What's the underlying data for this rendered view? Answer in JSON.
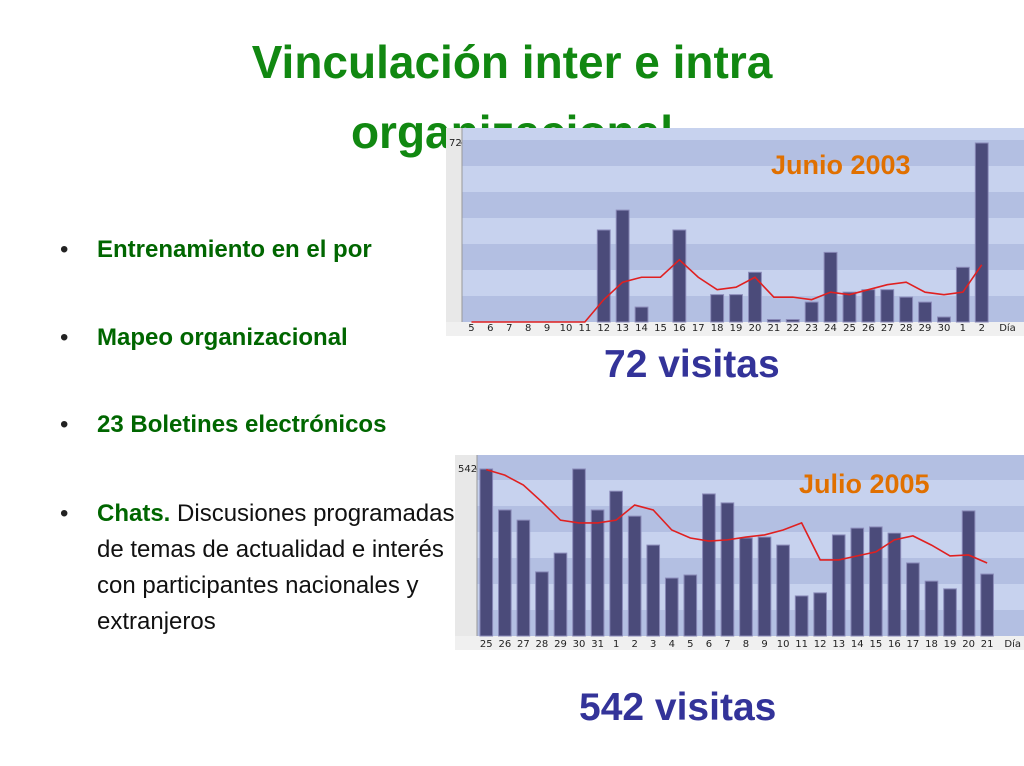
{
  "title_lines": [
    "Vinculación inter e intra",
    "organizacional"
  ],
  "bullets": [
    {
      "text": "Entrenamiento en el por"
    },
    {
      "text": "Mapeo organizacional"
    },
    {
      "text": "23 Boletines electrónicos"
    },
    {
      "lead": "Chats.",
      "text": "Discusiones programadas de temas de actualidad e interés con participantes nacionales y extranjeros"
    }
  ],
  "chart_data": [
    {
      "type": "bar",
      "title": "Junio 2003",
      "annotation": "72 visitas",
      "x_label": "Día",
      "categories": [
        "5",
        "6",
        "7",
        "8",
        "9",
        "10",
        "11",
        "12",
        "13",
        "14",
        "15",
        "16",
        "17",
        "18",
        "19",
        "20",
        "21",
        "22",
        "23",
        "24",
        "25",
        "26",
        "27",
        "28",
        "29",
        "30",
        "1",
        "2"
      ],
      "ylim": [
        0,
        72
      ],
      "yticks": [
        72
      ],
      "series": [
        {
          "type": "bar",
          "color": "#4b4b7a",
          "values": [
            0,
            0,
            0,
            0,
            0,
            0,
            0,
            37,
            45,
            6,
            0,
            37,
            0,
            11,
            11,
            20,
            1,
            1,
            8,
            28,
            12,
            13,
            13,
            10,
            8,
            2,
            22,
            72
          ]
        },
        {
          "type": "line",
          "color": "#e02020",
          "values": [
            0,
            0,
            0,
            0,
            0,
            0,
            0,
            9,
            16,
            18,
            18,
            25,
            18,
            13,
            14,
            18,
            10,
            10,
            9,
            12,
            11,
            13,
            15,
            16,
            12,
            11,
            12,
            23
          ]
        }
      ]
    },
    {
      "type": "bar",
      "title": "Julio 2005",
      "annotation": "542 visitas",
      "x_label": "Día",
      "categories": [
        "25",
        "26",
        "27",
        "28",
        "29",
        "30",
        "31",
        "1",
        "2",
        "3",
        "4",
        "5",
        "6",
        "7",
        "8",
        "9",
        "10",
        "11",
        "12",
        "13",
        "14",
        "15",
        "16",
        "17",
        "18",
        "19",
        "20",
        "21"
      ],
      "ylim": [
        0,
        542
      ],
      "yticks": [
        542
      ],
      "series": [
        {
          "type": "bar",
          "color": "#4b4b7a",
          "values": [
            542,
            409,
            376,
            208,
            269,
            542,
            409,
            470,
            389,
            295,
            188,
            198,
            461,
            432,
            318,
            321,
            295,
            130,
            140,
            328,
            350,
            354,
            334,
            237,
            178,
            153,
            406,
            201
          ]
        },
        {
          "type": "line",
          "color": "#e02020",
          "values": [
            540,
            522,
            490,
            435,
            376,
            367,
            367,
            376,
            425,
            409,
            344,
            318,
            308,
            312,
            321,
            328,
            344,
            367,
            247,
            247,
            260,
            273,
            312,
            325,
            295,
            260,
            263,
            237
          ]
        }
      ]
    }
  ]
}
